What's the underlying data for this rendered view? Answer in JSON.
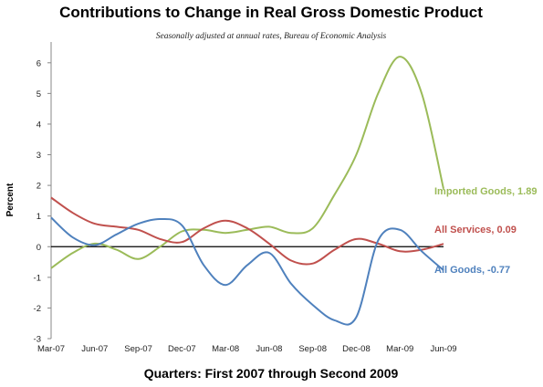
{
  "chart_data": {
    "type": "line",
    "title": "Contributions to Change in Real Gross Domestic Product",
    "subtitle": "Seasonally adjusted at annual rates, Bureau of Economic Analysis",
    "xlabel": "Quarters: First 2007 through Second 2009",
    "ylabel": "Percent",
    "ylim": [
      -3,
      6.5
    ],
    "yticks": [
      -3,
      -2,
      -1,
      0,
      1,
      2,
      3,
      4,
      5,
      6
    ],
    "categories": [
      "Mar-07",
      "",
      "Jun-07",
      "",
      "Sep-07",
      "",
      "Dec-07",
      "",
      "Mar-08",
      "",
      "Jun-08",
      "",
      "Sep-08",
      "",
      "Dec-08",
      "",
      "Mar-09",
      "",
      "Jun-09"
    ],
    "tick_labels": [
      "Mar-07",
      "Jun-07",
      "Sep-07",
      "Dec-07",
      "Mar-08",
      "Jun-08",
      "Sep-08",
      "Dec-08",
      "Mar-09",
      "Jun-09"
    ],
    "grid": false,
    "series": [
      {
        "name": "Imported Goods",
        "label": "Imported Goods, 1.89",
        "color": "#9bbb59",
        "values": [
          -0.7,
          -0.2,
          0.1,
          -0.1,
          -0.4,
          0.0,
          0.5,
          0.55,
          0.45,
          0.55,
          0.65,
          0.45,
          0.6,
          1.7,
          3.0,
          5.0,
          6.2,
          5.0,
          1.89
        ]
      },
      {
        "name": "All Services",
        "label": "All Services, 0.09",
        "color": "#c0504d",
        "values": [
          1.6,
          1.1,
          0.75,
          0.65,
          0.55,
          0.25,
          0.15,
          0.6,
          0.85,
          0.6,
          0.1,
          -0.45,
          -0.55,
          -0.1,
          0.25,
          0.1,
          -0.15,
          -0.1,
          0.09
        ]
      },
      {
        "name": "All Goods",
        "label": "All Goods, -0.77",
        "color": "#4f81bd",
        "values": [
          0.95,
          0.3,
          0.05,
          0.4,
          0.75,
          0.9,
          0.7,
          -0.6,
          -1.25,
          -0.6,
          -0.2,
          -1.2,
          -1.9,
          -2.4,
          -2.3,
          0.2,
          0.55,
          -0.15,
          -0.77
        ]
      }
    ]
  }
}
